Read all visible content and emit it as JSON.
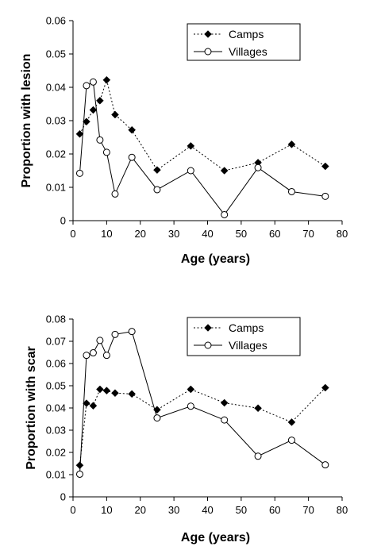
{
  "chart_data": [
    {
      "type": "line",
      "xlabel": "Age (years)",
      "ylabel": "Proportion with lesion",
      "xlim": [
        0,
        80
      ],
      "ylim": [
        0,
        0.06
      ],
      "xticks": [
        "0",
        "10",
        "20",
        "30",
        "40",
        "50",
        "60",
        "70",
        "80"
      ],
      "yticks": [
        "0",
        "0.01",
        "0.02",
        "0.03",
        "0.04",
        "0.05",
        "0.06"
      ],
      "legend": "top-right",
      "series": [
        {
          "name": "Camps",
          "style": "dotted-diamond",
          "x": [
            2,
            4,
            6,
            8,
            10,
            12.5,
            17.5,
            25,
            35,
            45,
            55,
            65,
            75
          ],
          "y": [
            0.026,
            0.0297,
            0.0332,
            0.036,
            0.0422,
            0.0318,
            0.0272,
            0.0152,
            0.0224,
            0.015,
            0.0174,
            0.0229,
            0.0163
          ]
        },
        {
          "name": "Villages",
          "style": "solid-circle",
          "x": [
            2,
            4,
            6,
            8,
            10,
            12.5,
            17.5,
            25,
            35,
            45,
            55,
            65,
            75
          ],
          "y": [
            0.0142,
            0.0405,
            0.0416,
            0.0242,
            0.0205,
            0.008,
            0.019,
            0.0093,
            0.015,
            0.0018,
            0.0159,
            0.0087,
            0.0073
          ]
        }
      ]
    },
    {
      "type": "line",
      "xlabel": "Age (years)",
      "ylabel": "Proportion with scar",
      "xlim": [
        0,
        80
      ],
      "ylim": [
        0,
        0.08
      ],
      "xticks": [
        "0",
        "10",
        "20",
        "30",
        "40",
        "50",
        "60",
        "70",
        "80"
      ],
      "yticks": [
        "0",
        "0.01",
        "0.02",
        "0.03",
        "0.04",
        "0.05",
        "0.06",
        "0.07",
        "0.08"
      ],
      "legend": "top-right",
      "series": [
        {
          "name": "Camps",
          "style": "dotted-diamond",
          "x": [
            2,
            4,
            6,
            8,
            10,
            12.5,
            17.5,
            25,
            35,
            45,
            55,
            65,
            75
          ],
          "y": [
            0.0142,
            0.0421,
            0.041,
            0.0484,
            0.0478,
            0.0467,
            0.0463,
            0.0392,
            0.0484,
            0.0423,
            0.0399,
            0.0336,
            0.0491
          ]
        },
        {
          "name": "Villages",
          "style": "solid-circle",
          "x": [
            2,
            4,
            6,
            8,
            10,
            12.5,
            17.5,
            25,
            35,
            45,
            55,
            65,
            75
          ],
          "y": [
            0.0102,
            0.0637,
            0.0648,
            0.0704,
            0.0637,
            0.0731,
            0.0744,
            0.0355,
            0.0408,
            0.0346,
            0.0183,
            0.0255,
            0.0144
          ]
        }
      ]
    }
  ]
}
